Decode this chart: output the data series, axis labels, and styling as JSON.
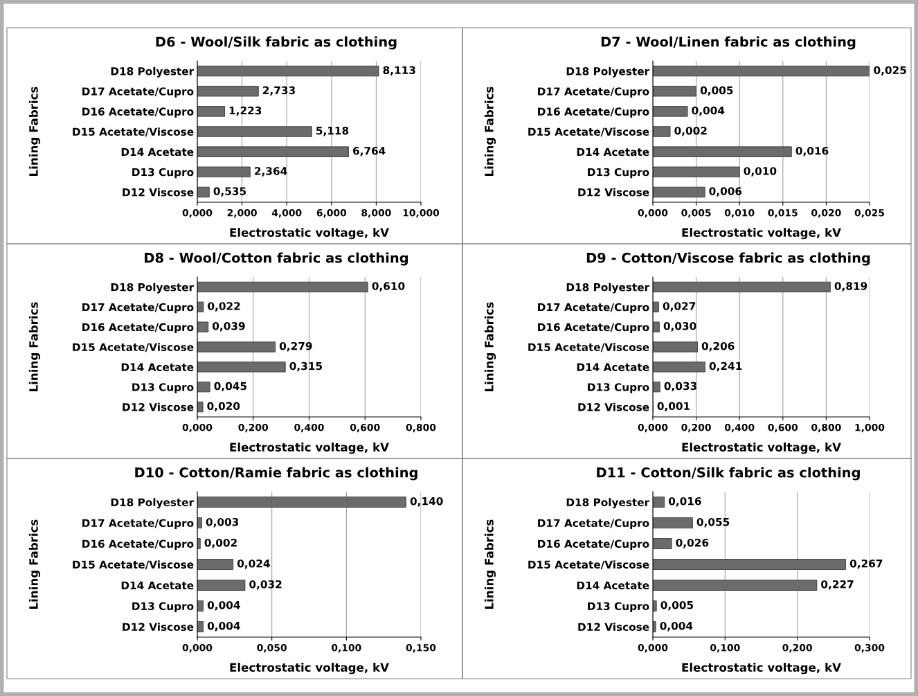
{
  "chart_data": [
    {
      "type": "bar",
      "orientation": "horizontal",
      "title": "D6 - Wool/Silk fabric as clothing",
      "xlabel": "Electrostatic voltage, kV",
      "ylabel": "Lining Fabrics",
      "categories": [
        "D18 Polyester",
        "D17 Acetate/Cupro",
        "D16 Acetate/Cupro",
        "D15 Acetate/Viscose",
        "D14 Acetate",
        "D13 Cupro",
        "D12 Viscose"
      ],
      "values": [
        8.113,
        2.733,
        1.223,
        5.118,
        6.764,
        2.364,
        0.535
      ],
      "value_labels": [
        "8,113",
        "2,733",
        "1,223",
        "5,118",
        "6,764",
        "2,364",
        "0,535"
      ],
      "color": "#6b6b6b",
      "xlim": [
        0,
        10
      ],
      "xticks": [
        {
          "value": 0,
          "label": "0,000"
        },
        {
          "value": 2,
          "label": "2,000"
        },
        {
          "value": 4,
          "label": "4,000"
        },
        {
          "value": 6,
          "label": "6,000"
        },
        {
          "value": 8,
          "label": "8,000"
        },
        {
          "value": 10,
          "label": "10,000"
        }
      ],
      "grid": "x"
    },
    {
      "type": "bar",
      "orientation": "horizontal",
      "title": "D7 - Wool/Linen fabric as clothing",
      "xlabel": "Electrostatic voltage, kV",
      "ylabel": "Lining Fabrics",
      "categories": [
        "D18 Polyester",
        "D17 Acetate/Cupro",
        "D16 Acetate/Cupro",
        "D15 Acetate/Viscose",
        "D14 Acetate",
        "D13 Cupro",
        "D12 Viscose"
      ],
      "values": [
        0.025,
        0.005,
        0.004,
        0.002,
        0.016,
        0.01,
        0.006
      ],
      "value_labels": [
        "0,025",
        "0,005",
        "0,004",
        "0,002",
        "0,016",
        "0,010",
        "0,006"
      ],
      "color": "#6b6b6b",
      "xlim": [
        0,
        0.025
      ],
      "xticks": [
        {
          "value": 0,
          "label": "0,000"
        },
        {
          "value": 0.005,
          "label": "0,005"
        },
        {
          "value": 0.01,
          "label": "0,010"
        },
        {
          "value": 0.015,
          "label": "0,015"
        },
        {
          "value": 0.02,
          "label": "0,020"
        },
        {
          "value": 0.025,
          "label": "0,025"
        }
      ],
      "grid": "x"
    },
    {
      "type": "bar",
      "orientation": "horizontal",
      "title": "D8 - Wool/Cotton fabric as clothing",
      "xlabel": "Electrostatic voltage, kV",
      "ylabel": "Lining Fabrics",
      "categories": [
        "D18 Polyester",
        "D17 Acetate/Cupro",
        "D16 Acetate/Cupro",
        "D15 Acetate/Viscose",
        "D14 Acetate",
        "D13 Cupro",
        "D12 Viscose"
      ],
      "values": [
        0.61,
        0.022,
        0.039,
        0.279,
        0.315,
        0.045,
        0.02
      ],
      "value_labels": [
        "0,610",
        "0,022",
        "0,039",
        "0,279",
        "0,315",
        "0,045",
        "0,020"
      ],
      "color": "#6b6b6b",
      "xlim": [
        0,
        0.8
      ],
      "xticks": [
        {
          "value": 0,
          "label": "0,000"
        },
        {
          "value": 0.2,
          "label": "0,200"
        },
        {
          "value": 0.4,
          "label": "0,400"
        },
        {
          "value": 0.6,
          "label": "0,600"
        },
        {
          "value": 0.8,
          "label": "0,800"
        }
      ],
      "grid": "x"
    },
    {
      "type": "bar",
      "orientation": "horizontal",
      "title": "D9 - Cotton/Viscose fabric as clothing",
      "xlabel": "Electrostatic voltage, kV",
      "ylabel": "Lining Fabrics",
      "categories": [
        "D18 Polyester",
        "D17 Acetate/Cupro",
        "D16 Acetate/Cupro",
        "D15 Acetate/Viscose",
        "D14 Acetate",
        "D13 Cupro",
        "D12 Viscose"
      ],
      "values": [
        0.819,
        0.027,
        0.03,
        0.206,
        0.241,
        0.033,
        0.001
      ],
      "value_labels": [
        "0,819",
        "0,027",
        "0,030",
        "0,206",
        "0,241",
        "0,033",
        "0,001"
      ],
      "color": "#6b6b6b",
      "xlim": [
        0,
        1.0
      ],
      "xticks": [
        {
          "value": 0,
          "label": "0,000"
        },
        {
          "value": 0.2,
          "label": "0,200"
        },
        {
          "value": 0.4,
          "label": "0,400"
        },
        {
          "value": 0.6,
          "label": "0,600"
        },
        {
          "value": 0.8,
          "label": "0,800"
        },
        {
          "value": 1.0,
          "label": "1,000"
        }
      ],
      "grid": "x"
    },
    {
      "type": "bar",
      "orientation": "horizontal",
      "title": "D10 - Cotton/Ramie fabric as clothing",
      "xlabel": "Electrostatic voltage, kV",
      "ylabel": "Lining Fabrics",
      "categories": [
        "D18 Polyester",
        "D17 Acetate/Cupro",
        "D16 Acetate/Cupro",
        "D15 Acetate/Viscose",
        "D14 Acetate",
        "D13 Cupro",
        "D12 Viscose"
      ],
      "values": [
        0.14,
        0.003,
        0.002,
        0.024,
        0.032,
        0.004,
        0.004
      ],
      "value_labels": [
        "0,140",
        "0,003",
        "0,002",
        "0,024",
        "0,032",
        "0,004",
        "0,004"
      ],
      "color": "#6b6b6b",
      "xlim": [
        0,
        0.15
      ],
      "xticks": [
        {
          "value": 0,
          "label": "0,000"
        },
        {
          "value": 0.05,
          "label": "0,050"
        },
        {
          "value": 0.1,
          "label": "0,100"
        },
        {
          "value": 0.15,
          "label": "0,150"
        }
      ],
      "grid": "x"
    },
    {
      "type": "bar",
      "orientation": "horizontal",
      "title": "D11 - Cotton/Silk fabric as clothing",
      "xlabel": "Electrostatic voltage, kV",
      "ylabel": "Lining Fabrics",
      "categories": [
        "D18 Polyester",
        "D17 Acetate/Cupro",
        "D16 Acetate/Cupro",
        "D15 Acetate/Viscose",
        "D14 Acetate",
        "D13 Cupro",
        "D12 Viscose"
      ],
      "values": [
        0.016,
        0.055,
        0.026,
        0.267,
        0.227,
        0.005,
        0.004
      ],
      "value_labels": [
        "0,016",
        "0,055",
        "0,026",
        "0,267",
        "0,227",
        "0,005",
        "0,004"
      ],
      "color": "#6b6b6b",
      "xlim": [
        0,
        0.3
      ],
      "xticks": [
        {
          "value": 0,
          "label": "0,000"
        },
        {
          "value": 0.1,
          "label": "0,100"
        },
        {
          "value": 0.2,
          "label": "0,200"
        },
        {
          "value": 0.3,
          "label": "0,300"
        }
      ],
      "grid": "x"
    }
  ]
}
